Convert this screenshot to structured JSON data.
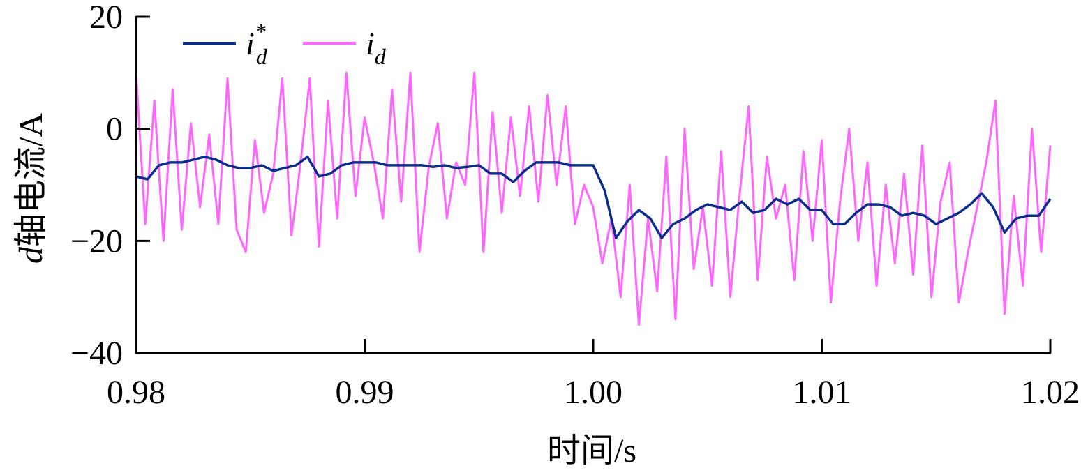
{
  "chart_data": {
    "type": "line",
    "title": "",
    "xlabel": "时间/s",
    "ylabel_prefix": "d",
    "ylabel": "轴电流/A",
    "xlim": [
      0.98,
      1.02
    ],
    "ylim": [
      -40,
      20
    ],
    "xticks": [
      0.98,
      0.99,
      1.0,
      1.01,
      1.02
    ],
    "xtick_labels": [
      "0.98",
      "0.99",
      "1.00",
      "1.01",
      "1.02"
    ],
    "yticks": [
      -40,
      -20,
      0,
      20
    ],
    "ytick_labels": [
      "−40",
      "−20",
      "0",
      "20"
    ],
    "grid": false,
    "legend_position": "top-left",
    "series": [
      {
        "name": "i*d",
        "legend_base": "i",
        "legend_sup": "*",
        "legend_sub": "d",
        "color": "#0a2d8c",
        "x": [
          0.98,
          0.9805,
          0.981,
          0.9815,
          0.982,
          0.9825,
          0.983,
          0.9835,
          0.984,
          0.9845,
          0.985,
          0.9855,
          0.986,
          0.9865,
          0.987,
          0.9875,
          0.988,
          0.9885,
          0.989,
          0.9895,
          0.99,
          0.9905,
          0.991,
          0.9915,
          0.992,
          0.9925,
          0.993,
          0.9935,
          0.994,
          0.9945,
          0.995,
          0.9955,
          0.996,
          0.9965,
          0.997,
          0.9975,
          0.998,
          0.9985,
          0.999,
          0.9995,
          1.0,
          1.0005,
          1.001,
          1.0015,
          1.002,
          1.0025,
          1.003,
          1.0035,
          1.004,
          1.0045,
          1.005,
          1.0055,
          1.006,
          1.0065,
          1.007,
          1.0075,
          1.008,
          1.0085,
          1.009,
          1.0095,
          1.01,
          1.0105,
          1.011,
          1.0115,
          1.012,
          1.0125,
          1.013,
          1.0135,
          1.014,
          1.0145,
          1.015,
          1.0155,
          1.016,
          1.0165,
          1.017,
          1.0175,
          1.018,
          1.0185,
          1.019,
          1.0195,
          1.02
        ],
        "values": [
          -8.5,
          -9.0,
          -6.5,
          -6.0,
          -6.0,
          -5.5,
          -5.0,
          -5.5,
          -6.5,
          -7.0,
          -7.0,
          -6.5,
          -7.5,
          -7.0,
          -6.5,
          -5.0,
          -8.5,
          -8.0,
          -6.5,
          -6.0,
          -6.0,
          -6.0,
          -6.5,
          -6.5,
          -6.5,
          -6.5,
          -6.8,
          -6.5,
          -7.0,
          -6.8,
          -6.5,
          -8.0,
          -8.0,
          -9.5,
          -7.5,
          -6.0,
          -6.0,
          -6.0,
          -6.5,
          -6.5,
          -6.5,
          -11.0,
          -19.5,
          -16.5,
          -14.5,
          -16.0,
          -19.5,
          -17.0,
          -16.0,
          -14.5,
          -13.5,
          -14.0,
          -14.5,
          -13.0,
          -15.0,
          -14.5,
          -12.5,
          -13.5,
          -12.5,
          -14.5,
          -14.5,
          -17.0,
          -17.0,
          -15.0,
          -13.5,
          -13.5,
          -14.0,
          -15.5,
          -15.0,
          -15.5,
          -17.0,
          -16.0,
          -15.0,
          -13.5,
          -11.5,
          -14.0,
          -18.5,
          -16.0,
          -15.5,
          -15.5,
          -12.5
        ]
      },
      {
        "name": "id",
        "legend_base": "i",
        "legend_sup": "",
        "legend_sub": "d",
        "color": "#ff66ff",
        "x": [
          0.98,
          0.9804,
          0.9808,
          0.9812,
          0.9816,
          0.982,
          0.9824,
          0.9828,
          0.9832,
          0.9836,
          0.984,
          0.9844,
          0.9848,
          0.9852,
          0.9856,
          0.986,
          0.9864,
          0.9868,
          0.9872,
          0.9876,
          0.988,
          0.9884,
          0.9888,
          0.9892,
          0.9896,
          0.99,
          0.9904,
          0.9908,
          0.9912,
          0.9916,
          0.992,
          0.9924,
          0.9928,
          0.9932,
          0.9936,
          0.994,
          0.9944,
          0.9948,
          0.9952,
          0.9956,
          0.996,
          0.9964,
          0.9968,
          0.9972,
          0.9976,
          0.998,
          0.9984,
          0.9988,
          0.9992,
          0.9996,
          1.0,
          1.0004,
          1.0008,
          1.0012,
          1.0016,
          1.002,
          1.0024,
          1.0028,
          1.0032,
          1.0036,
          1.004,
          1.0044,
          1.0048,
          1.0052,
          1.0056,
          1.006,
          1.0064,
          1.0068,
          1.0072,
          1.0076,
          1.008,
          1.0084,
          1.0088,
          1.0092,
          1.0096,
          1.01,
          1.0104,
          1.0108,
          1.0112,
          1.0116,
          1.012,
          1.0124,
          1.0128,
          1.0132,
          1.0136,
          1.014,
          1.0144,
          1.0148,
          1.0152,
          1.0156,
          1.016,
          1.0164,
          1.0168,
          1.0172,
          1.0176,
          1.018,
          1.0184,
          1.0188,
          1.0192,
          1.0196,
          1.02
        ],
        "values": [
          10.0,
          -17.0,
          5.0,
          -20.0,
          7.0,
          -18.0,
          1.0,
          -14.0,
          -1.0,
          -17.0,
          9.0,
          -18.0,
          -22.0,
          -2.0,
          -15.0,
          -8.0,
          9.0,
          -19.0,
          -6.0,
          9.0,
          -21.0,
          5.0,
          -16.0,
          10.0,
          -12.0,
          2.0,
          -6.0,
          -16.0,
          7.0,
          -13.0,
          10.0,
          -22.0,
          -7.0,
          1.0,
          -16.0,
          -6.0,
          -10.0,
          10.0,
          -22.0,
          3.0,
          -15.0,
          2.0,
          -12.0,
          4.0,
          -13.0,
          6.0,
          -10.0,
          4.0,
          -17.0,
          -10.0,
          -14.0,
          -24.0,
          -16.0,
          -30.0,
          -10.0,
          -35.0,
          -16.0,
          -29.0,
          -5.0,
          -34.0,
          0.0,
          -25.0,
          -14.0,
          -28.0,
          -4.0,
          -30.0,
          -12.0,
          4.0,
          -27.0,
          -5.0,
          -16.0,
          -10.0,
          -27.0,
          -4.0,
          -20.0,
          -2.0,
          -31.0,
          -13.0,
          0.0,
          -20.0,
          -6.0,
          -28.0,
          -10.0,
          -24.0,
          -8.0,
          -26.0,
          -3.0,
          -30.0,
          -13.0,
          -6.0,
          -31.0,
          -22.0,
          -14.0,
          -6.0,
          5.0,
          -33.0,
          -12.0,
          -28.0,
          0.0,
          -22.0,
          -3.0
        ]
      }
    ]
  }
}
